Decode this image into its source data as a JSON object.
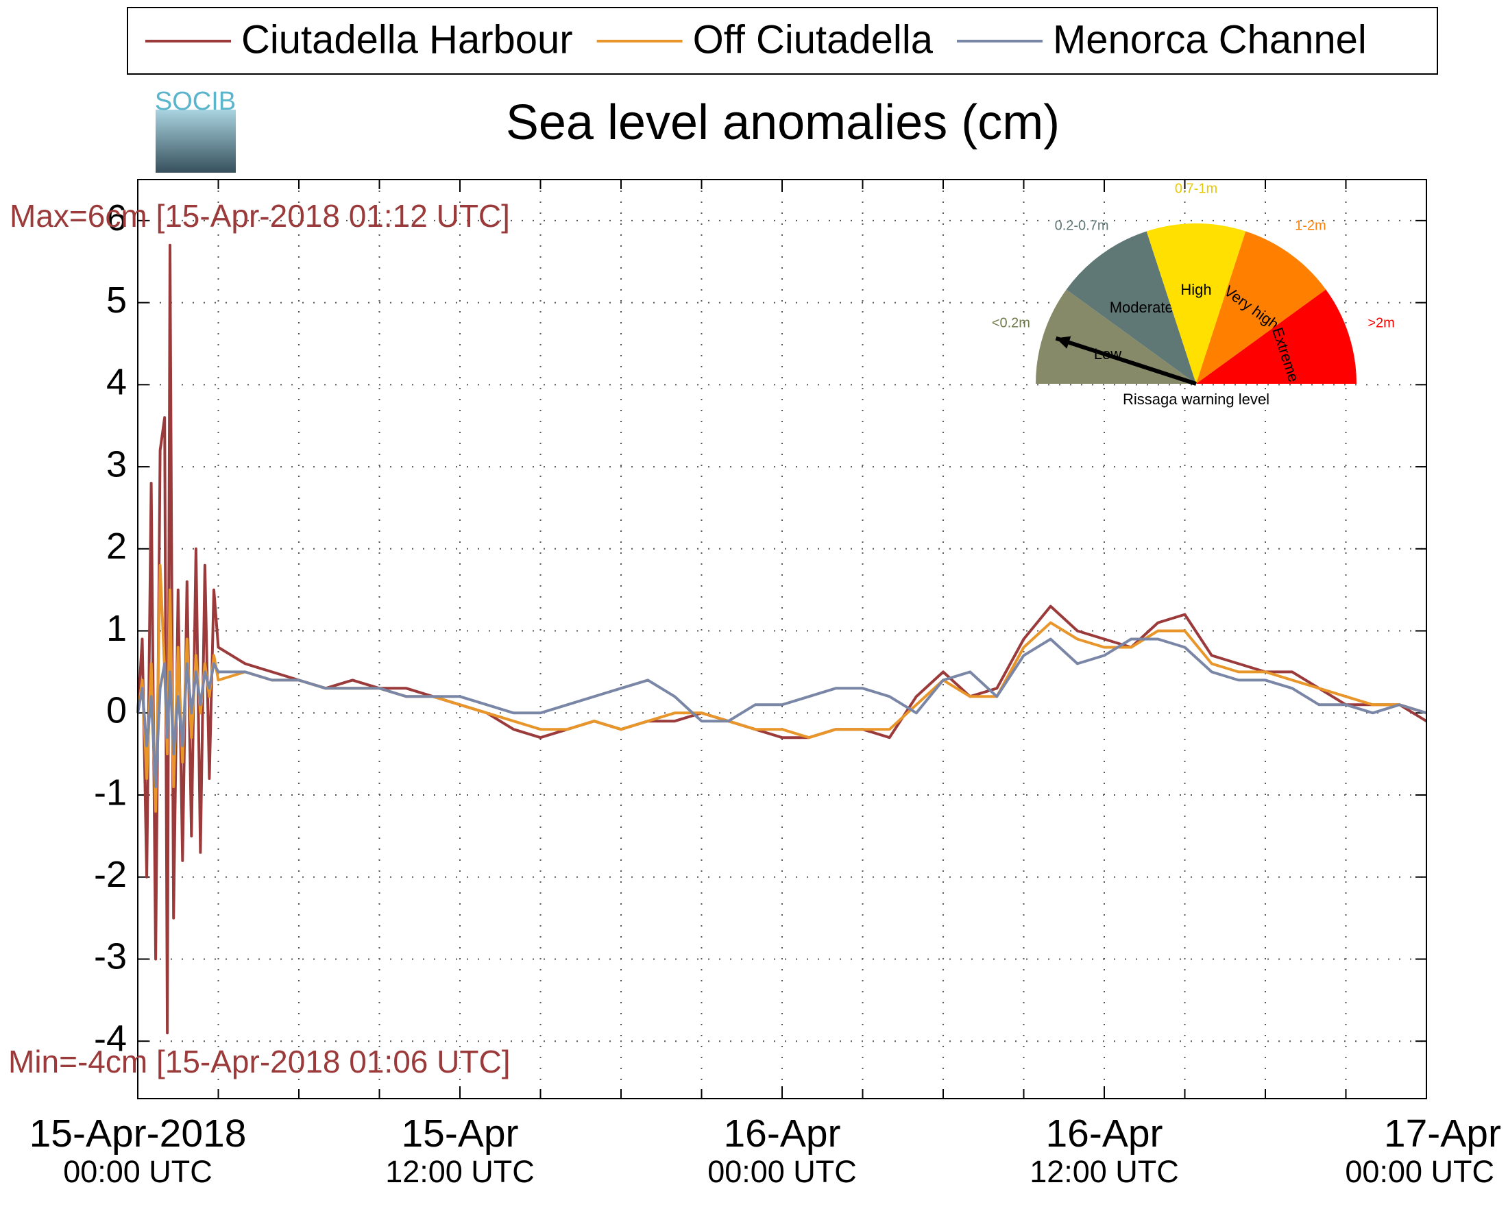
{
  "chart_data": {
    "type": "line",
    "title": "Sea level anomalies (cm)",
    "logo": "SOCIB",
    "annotations": [
      "Max=6cm [15-Apr-2018 01:12 UTC]",
      "Min=-4cm [15-Apr-2018 01:06 UTC]"
    ],
    "x": [
      "2018-04-15 00:00",
      "2018-04-15 00:10",
      "2018-04-15 00:20",
      "2018-04-15 00:30",
      "2018-04-15 00:40",
      "2018-04-15 00:50",
      "2018-04-15 01:00",
      "2018-04-15 01:06",
      "2018-04-15 01:12",
      "2018-04-15 01:20",
      "2018-04-15 01:30",
      "2018-04-15 01:40",
      "2018-04-15 01:50",
      "2018-04-15 02:00",
      "2018-04-15 02:10",
      "2018-04-15 02:20",
      "2018-04-15 02:30",
      "2018-04-15 02:40",
      "2018-04-15 02:50",
      "2018-04-15 03:00",
      "2018-04-15 04:00",
      "2018-04-15 05:00",
      "2018-04-15 06:00",
      "2018-04-15 07:00",
      "2018-04-15 08:00",
      "2018-04-15 09:00",
      "2018-04-15 10:00",
      "2018-04-15 11:00",
      "2018-04-15 12:00",
      "2018-04-15 13:00",
      "2018-04-15 14:00",
      "2018-04-15 15:00",
      "2018-04-15 16:00",
      "2018-04-15 17:00",
      "2018-04-15 18:00",
      "2018-04-15 19:00",
      "2018-04-15 20:00",
      "2018-04-15 21:00",
      "2018-04-15 22:00",
      "2018-04-15 23:00",
      "2018-04-16 00:00",
      "2018-04-16 01:00",
      "2018-04-16 02:00",
      "2018-04-16 03:00",
      "2018-04-16 04:00",
      "2018-04-16 05:00",
      "2018-04-16 06:00",
      "2018-04-16 07:00",
      "2018-04-16 08:00",
      "2018-04-16 09:00",
      "2018-04-16 10:00",
      "2018-04-16 11:00",
      "2018-04-16 12:00",
      "2018-04-16 13:00",
      "2018-04-16 14:00",
      "2018-04-16 15:00",
      "2018-04-16 16:00",
      "2018-04-16 17:00",
      "2018-04-16 18:00",
      "2018-04-16 19:00",
      "2018-04-16 20:00",
      "2018-04-16 21:00",
      "2018-04-16 22:00",
      "2018-04-16 23:00",
      "2018-04-17 00:00"
    ],
    "series": [
      {
        "name": "Ciutadella Harbour",
        "color": "#9b3a3a",
        "values": [
          0,
          0.9,
          -2.0,
          2.8,
          -3.0,
          3.2,
          3.6,
          -3.9,
          5.7,
          -2.5,
          1.5,
          -1.8,
          1.6,
          -1.5,
          2.0,
          -1.7,
          1.8,
          -0.8,
          1.5,
          0.8,
          0.6,
          0.5,
          0.4,
          0.3,
          0.4,
          0.3,
          0.3,
          0.2,
          0.1,
          0.0,
          -0.2,
          -0.3,
          -0.2,
          -0.1,
          -0.2,
          -0.1,
          -0.1,
          0.0,
          -0.1,
          -0.2,
          -0.3,
          -0.3,
          -0.2,
          -0.2,
          -0.3,
          0.2,
          0.5,
          0.2,
          0.3,
          0.9,
          1.3,
          1.0,
          0.9,
          0.8,
          1.1,
          1.2,
          0.7,
          0.6,
          0.5,
          0.5,
          0.3,
          0.1,
          0.1,
          0.1,
          -0.1
        ]
      },
      {
        "name": "Off Ciutadella",
        "color": "#e8962a",
        "values": [
          0,
          0.4,
          -0.8,
          0.6,
          -1.2,
          1.8,
          0.5,
          -0.5,
          1.5,
          -0.9,
          0.8,
          -0.6,
          0.9,
          -0.3,
          0.7,
          0.0,
          0.6,
          0.2,
          0.7,
          0.4,
          0.5,
          0.4,
          0.4,
          0.3,
          0.3,
          0.3,
          0.2,
          0.2,
          0.1,
          0.0,
          -0.1,
          -0.2,
          -0.2,
          -0.1,
          -0.2,
          -0.1,
          0.0,
          0.0,
          -0.1,
          -0.2,
          -0.2,
          -0.3,
          -0.2,
          -0.2,
          -0.2,
          0.1,
          0.4,
          0.2,
          0.2,
          0.8,
          1.1,
          0.9,
          0.8,
          0.8,
          1.0,
          1.0,
          0.6,
          0.5,
          0.5,
          0.4,
          0.3,
          0.2,
          0.1,
          0.1,
          0.0
        ]
      },
      {
        "name": "Menorca Channel",
        "color": "#7a86a6",
        "values": [
          0,
          0.3,
          -0.4,
          0.2,
          -0.9,
          0.3,
          0.6,
          -0.3,
          0.5,
          -0.5,
          0.2,
          -0.4,
          0.6,
          0.0,
          0.5,
          0.1,
          0.5,
          0.3,
          0.6,
          0.5,
          0.5,
          0.4,
          0.4,
          0.3,
          0.3,
          0.3,
          0.2,
          0.2,
          0.2,
          0.1,
          0.0,
          0.0,
          0.1,
          0.2,
          0.3,
          0.4,
          0.2,
          -0.1,
          -0.1,
          0.1,
          0.1,
          0.2,
          0.3,
          0.3,
          0.2,
          0.0,
          0.4,
          0.5,
          0.2,
          0.7,
          0.9,
          0.6,
          0.7,
          0.9,
          0.9,
          0.8,
          0.5,
          0.4,
          0.4,
          0.3,
          0.1,
          0.1,
          0.0,
          0.1,
          0.0
        ]
      }
    ],
    "xlim": [
      "2018-04-15 00:00",
      "2018-04-17 00:00"
    ],
    "xticks": [
      {
        "value": "2018-04-15 00:00",
        "label": "15-Apr-2018",
        "sublabel": "00:00 UTC"
      },
      {
        "value": "2018-04-15 12:00",
        "label": "15-Apr",
        "sublabel": "12:00 UTC"
      },
      {
        "value": "2018-04-16 00:00",
        "label": "16-Apr",
        "sublabel": "00:00 UTC"
      },
      {
        "value": "2018-04-16 12:00",
        "label": "16-Apr",
        "sublabel": "12:00 UTC"
      },
      {
        "value": "2018-04-17 00:00",
        "label": "17-Apr",
        "sublabel": "00:00 UTC"
      }
    ],
    "xgrid": [
      "2018-04-15 03:00",
      "2018-04-15 06:00",
      "2018-04-15 09:00",
      "2018-04-15 12:00",
      "2018-04-15 15:00",
      "2018-04-15 18:00",
      "2018-04-15 21:00",
      "2018-04-16 00:00",
      "2018-04-16 03:00",
      "2018-04-16 06:00",
      "2018-04-16 09:00",
      "2018-04-16 12:00",
      "2018-04-16 15:00",
      "2018-04-16 18:00",
      "2018-04-16 21:00"
    ],
    "ylim": [
      -4.7,
      6.5
    ],
    "yticks": [
      -4,
      -3,
      -2,
      -1,
      0,
      1,
      2,
      3,
      4,
      5,
      6
    ],
    "grid": true,
    "legend": "top",
    "inset": {
      "title": "Rissaga warning level",
      "levels": [
        {
          "name": "Low",
          "range": "<0.2m",
          "color": "#868a68",
          "text_color": "#6f7a4a"
        },
        {
          "name": "Moderate",
          "range": "0.2-0.7m",
          "color": "#5f7775",
          "text_color": "#5f7775"
        },
        {
          "name": "High",
          "range": "0.7-1m",
          "color": "#ffe000",
          "text_color": "#e8c800"
        },
        {
          "name": "Very high",
          "range": "1-2m",
          "color": "#ff8000",
          "text_color": "#ff8000"
        },
        {
          "name": "Extreme",
          "range": ">2m",
          "color": "#ff0000",
          "text_color": "#ff0000"
        }
      ]
    }
  }
}
